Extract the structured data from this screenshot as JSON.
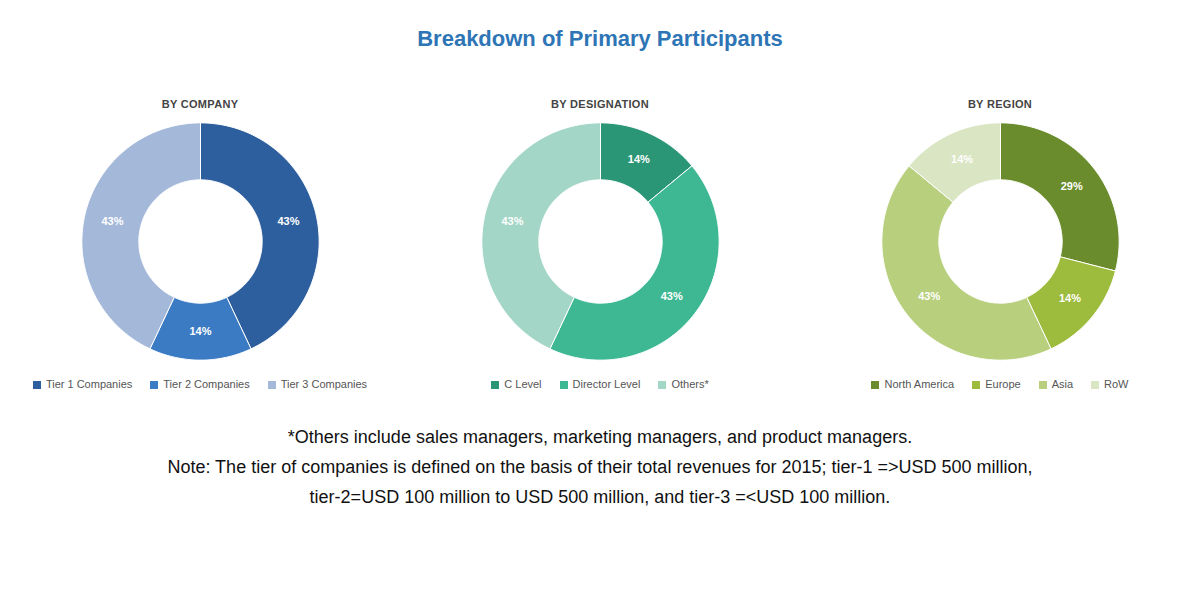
{
  "title": "Breakdown of Primary Participants",
  "chart_data": [
    {
      "type": "pie",
      "title": "BY COMPANY",
      "categories": [
        "Tier 1 Companies",
        "Tier 2 Companies",
        "Tier 3 Companies"
      ],
      "values": [
        43,
        14,
        43
      ],
      "value_labels": [
        "43%",
        "14%",
        "43%"
      ],
      "colors": [
        "#2d5f9e",
        "#3b7bc4",
        "#a4b9d9"
      ],
      "data_labels": true,
      "legend": "bottom"
    },
    {
      "type": "pie",
      "title": "BY DESIGNATION",
      "categories": [
        "C Level",
        "Director Level",
        "Others*"
      ],
      "values": [
        14,
        43,
        43
      ],
      "value_labels": [
        "14%",
        "43%",
        "43%"
      ],
      "colors": [
        "#2a9676",
        "#3db893",
        "#a3d6c6"
      ],
      "data_labels": true,
      "legend": "bottom"
    },
    {
      "type": "pie",
      "title": "BY REGION",
      "categories": [
        "North America",
        "Europe",
        "Asia",
        "RoW"
      ],
      "values": [
        29,
        14,
        43,
        14
      ],
      "value_labels": [
        "29%",
        "14%",
        "43%",
        "14%"
      ],
      "colors": [
        "#6a8c2c",
        "#9dbb3c",
        "#b8d07e",
        "#d9e5c3"
      ],
      "data_labels": true,
      "legend": "bottom"
    }
  ],
  "footnotes": [
    "*Others include sales managers, marketing managers, and product managers.",
    "Note: The tier of companies is defined on the basis of their total revenues for 2015; tier-1 =>USD 500 million,",
    "tier-2=USD 100 million to USD 500 million, and tier-3 =<USD 100 million."
  ]
}
